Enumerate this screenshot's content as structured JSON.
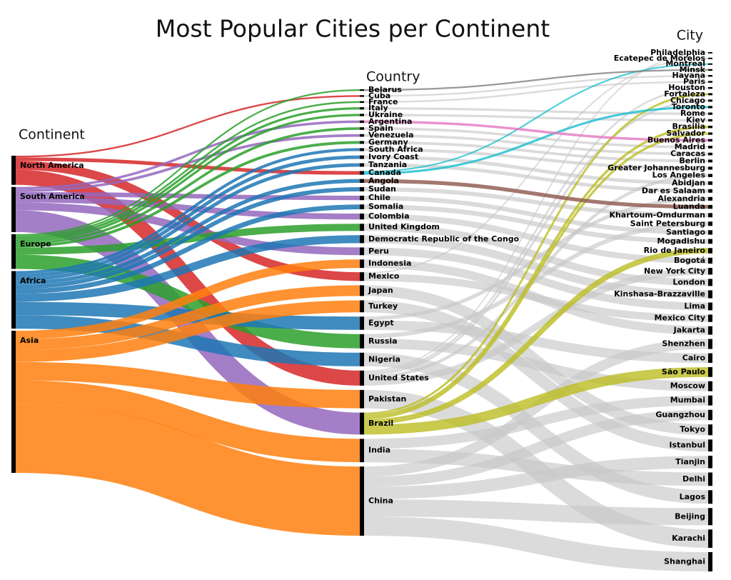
{
  "chart_data": {
    "type": "sankey",
    "title": "Most Popular Cities per Continent",
    "link_color": "#c7c7c7",
    "columns": [
      {
        "title": "Continent",
        "nodes": [
          {
            "name": "North America",
            "color": "#d62728"
          },
          {
            "name": "South America",
            "color": "#9467bd"
          },
          {
            "name": "Europe",
            "color": "#2ca02c"
          },
          {
            "name": "Africa",
            "color": "#1f77b4"
          },
          {
            "name": "Asia",
            "color": "#ff7f0e"
          }
        ]
      },
      {
        "title": "Country",
        "nodes": [
          {
            "name": "Belarus",
            "color": "#7f7f7f"
          },
          {
            "name": "Cuba"
          },
          {
            "name": "France"
          },
          {
            "name": "Italy"
          },
          {
            "name": "Ukraine"
          },
          {
            "name": "Argentina",
            "color": "#e377c2"
          },
          {
            "name": "Spain"
          },
          {
            "name": "Venezuela"
          },
          {
            "name": "Germany"
          },
          {
            "name": "South Africa"
          },
          {
            "name": "Ivory Coast"
          },
          {
            "name": "Tanzania"
          },
          {
            "name": "Canada",
            "color": "#17becf"
          },
          {
            "name": "Angola",
            "color": "#8c564b"
          },
          {
            "name": "Sudan"
          },
          {
            "name": "Chile"
          },
          {
            "name": "Somalia"
          },
          {
            "name": "Colombia"
          },
          {
            "name": "United Kingdom"
          },
          {
            "name": "Democratic Republic of the Congo"
          },
          {
            "name": "Peru"
          },
          {
            "name": "Indonesia"
          },
          {
            "name": "Mexico"
          },
          {
            "name": "Japan"
          },
          {
            "name": "Turkey"
          },
          {
            "name": "Egypt"
          },
          {
            "name": "Russia"
          },
          {
            "name": "Nigeria"
          },
          {
            "name": "United States"
          },
          {
            "name": "Pakistan"
          },
          {
            "name": "Brazil",
            "color": "#bcbd22"
          },
          {
            "name": "India"
          },
          {
            "name": "China"
          }
        ]
      },
      {
        "title": "City",
        "nodes": [
          {
            "name": "Philadelphia"
          },
          {
            "name": "Ecatepec de Morelos"
          },
          {
            "name": "Montreal"
          },
          {
            "name": "Minsk"
          },
          {
            "name": "Havana"
          },
          {
            "name": "Paris"
          },
          {
            "name": "Houston"
          },
          {
            "name": "Fortaleza"
          },
          {
            "name": "Chicago"
          },
          {
            "name": "Toronto"
          },
          {
            "name": "Rome"
          },
          {
            "name": "Kiev"
          },
          {
            "name": "Brasilia"
          },
          {
            "name": "Salvador"
          },
          {
            "name": "Buenos Aires"
          },
          {
            "name": "Madrid"
          },
          {
            "name": "Caracas"
          },
          {
            "name": "Berlin"
          },
          {
            "name": "Greater Johannesburg"
          },
          {
            "name": "Los Angeles"
          },
          {
            "name": "Abidjan"
          },
          {
            "name": "Dar es Salaam"
          },
          {
            "name": "Alexandria"
          },
          {
            "name": "Luanda"
          },
          {
            "name": "Khartoum-Omdurman"
          },
          {
            "name": "Saint Petersburg"
          },
          {
            "name": "Santiago"
          },
          {
            "name": "Mogadishu"
          },
          {
            "name": "Rio de Janeiro"
          },
          {
            "name": "Bogotá"
          },
          {
            "name": "New York City"
          },
          {
            "name": "London"
          },
          {
            "name": "Kinshasa-Brazzaville"
          },
          {
            "name": "Lima"
          },
          {
            "name": "Mexico City"
          },
          {
            "name": "Jakarta"
          },
          {
            "name": "Shenzhen"
          },
          {
            "name": "Cairo"
          },
          {
            "name": "São Paulo"
          },
          {
            "name": "Moscow"
          },
          {
            "name": "Mumbai"
          },
          {
            "name": "Guangzhou"
          },
          {
            "name": "Tokyo"
          },
          {
            "name": "Istanbul"
          },
          {
            "name": "Tianjin"
          },
          {
            "name": "Delhi"
          },
          {
            "name": "Lagos"
          },
          {
            "name": "Beijing"
          },
          {
            "name": "Karachi"
          },
          {
            "name": "Shanghai"
          }
        ]
      }
    ],
    "links": [
      {
        "source": "North America",
        "target": "Cuba",
        "value": 2.1
      },
      {
        "source": "North America",
        "target": "Canada",
        "value": 4.6
      },
      {
        "source": "North America",
        "target": "Mexico",
        "value": 10.9
      },
      {
        "source": "North America",
        "target": "United States",
        "value": 18.9
      },
      {
        "source": "South America",
        "target": "Argentina",
        "value": 3.1
      },
      {
        "source": "South America",
        "target": "Venezuela",
        "value": 3.3
      },
      {
        "source": "South America",
        "target": "Chile",
        "value": 5.6
      },
      {
        "source": "South America",
        "target": "Colombia",
        "value": 7.4
      },
      {
        "source": "South America",
        "target": "Peru",
        "value": 9.7
      },
      {
        "source": "South America",
        "target": "Brazil",
        "value": 27.5
      },
      {
        "source": "Europe",
        "target": "Belarus",
        "value": 2.0
      },
      {
        "source": "Europe",
        "target": "France",
        "value": 2.2
      },
      {
        "source": "Europe",
        "target": "Italy",
        "value": 2.9
      },
      {
        "source": "Europe",
        "target": "Ukraine",
        "value": 2.9
      },
      {
        "source": "Europe",
        "target": "Spain",
        "value": 3.2
      },
      {
        "source": "Europe",
        "target": "Germany",
        "value": 3.5
      },
      {
        "source": "Europe",
        "target": "United Kingdom",
        "value": 8.9
      },
      {
        "source": "Europe",
        "target": "Russia",
        "value": 17.9
      },
      {
        "source": "Africa",
        "target": "South Africa",
        "value": 3.7
      },
      {
        "source": "Africa",
        "target": "Ivory Coast",
        "value": 4.4
      },
      {
        "source": "Africa",
        "target": "Tanzania",
        "value": 4.4
      },
      {
        "source": "Africa",
        "target": "Angola",
        "value": 4.8
      },
      {
        "source": "Africa",
        "target": "Sudan",
        "value": 5.3
      },
      {
        "source": "Africa",
        "target": "Somalia",
        "value": 6.0
      },
      {
        "source": "Africa",
        "target": "Democratic Republic of the Congo",
        "value": 10
      },
      {
        "source": "Africa",
        "target": "Egypt",
        "value": 16.6
      },
      {
        "source": "Africa",
        "target": "Nigeria",
        "value": 17
      },
      {
        "source": "Asia",
        "target": "Indonesia",
        "value": 10.6
      },
      {
        "source": "Asia",
        "target": "Japan",
        "value": 13.5
      },
      {
        "source": "Asia",
        "target": "Turkey",
        "value": 15
      },
      {
        "source": "Asia",
        "target": "Pakistan",
        "value": 23
      },
      {
        "source": "Asia",
        "target": "India",
        "value": 29.3
      },
      {
        "source": "Asia",
        "target": "China",
        "value": 86.8
      },
      {
        "source": "United States",
        "target": "Philadelphia",
        "value": 1.6
      },
      {
        "source": "Mexico",
        "target": "Ecatepec de Morelos",
        "value": 1.7
      },
      {
        "source": "Canada",
        "target": "Montreal",
        "value": 1.8
      },
      {
        "source": "Belarus",
        "target": "Minsk",
        "value": 2.0
      },
      {
        "source": "Cuba",
        "target": "Havana",
        "value": 2.1
      },
      {
        "source": "France",
        "target": "Paris",
        "value": 2.2
      },
      {
        "source": "United States",
        "target": "Houston",
        "value": 2.3
      },
      {
        "source": "Brazil",
        "target": "Fortaleza",
        "value": 2.6
      },
      {
        "source": "United States",
        "target": "Chicago",
        "value": 2.7
      },
      {
        "source": "Canada",
        "target": "Toronto",
        "value": 2.8
      },
      {
        "source": "Italy",
        "target": "Rome",
        "value": 2.9
      },
      {
        "source": "Ukraine",
        "target": "Kiev",
        "value": 2.9
      },
      {
        "source": "Brazil",
        "target": "Brasilia",
        "value": 3.0
      },
      {
        "source": "Brazil",
        "target": "Salvador",
        "value": 2.9
      },
      {
        "source": "Argentina",
        "target": "Buenos Aires",
        "value": 3.1
      },
      {
        "source": "Spain",
        "target": "Madrid",
        "value": 3.2
      },
      {
        "source": "Venezuela",
        "target": "Caracas",
        "value": 3.3
      },
      {
        "source": "Germany",
        "target": "Berlin",
        "value": 3.5
      },
      {
        "source": "South Africa",
        "target": "Greater Johannesburg",
        "value": 3.7
      },
      {
        "source": "United States",
        "target": "Los Angeles",
        "value": 3.9
      },
      {
        "source": "Ivory Coast",
        "target": "Abidjan",
        "value": 4.4
      },
      {
        "source": "Tanzania",
        "target": "Dar es Salaam",
        "value": 4.4
      },
      {
        "source": "Egypt",
        "target": "Alexandria",
        "value": 4.6
      },
      {
        "source": "Angola",
        "target": "Luanda",
        "value": 4.8
      },
      {
        "source": "Sudan",
        "target": "Khartoum-Omdurman",
        "value": 5.3
      },
      {
        "source": "Russia",
        "target": "Saint Petersburg",
        "value": 5.4
      },
      {
        "source": "Chile",
        "target": "Santiago",
        "value": 5.6
      },
      {
        "source": "Somalia",
        "target": "Mogadishu",
        "value": 6.0
      },
      {
        "source": "Brazil",
        "target": "Rio de Janeiro",
        "value": 6.7
      },
      {
        "source": "Colombia",
        "target": "Bogotá",
        "value": 7.4
      },
      {
        "source": "United States",
        "target": "New York City",
        "value": 8.4
      },
      {
        "source": "United Kingdom",
        "target": "London",
        "value": 8.9
      },
      {
        "source": "Democratic Republic of the Congo",
        "target": "Kinshasa-Brazzaville",
        "value": 10
      },
      {
        "source": "Peru",
        "target": "Lima",
        "value": 9.7
      },
      {
        "source": "Mexico",
        "target": "Mexico City",
        "value": 9.2
      },
      {
        "source": "Indonesia",
        "target": "Jakarta",
        "value": 10.6
      },
      {
        "source": "China",
        "target": "Shenzhen",
        "value": 12.5
      },
      {
        "source": "Egypt",
        "target": "Cairo",
        "value": 12
      },
      {
        "source": "Brazil",
        "target": "São Paulo",
        "value": 12.3
      },
      {
        "source": "Russia",
        "target": "Moscow",
        "value": 12.5
      },
      {
        "source": "India",
        "target": "Mumbai",
        "value": 12.5
      },
      {
        "source": "China",
        "target": "Guangzhou",
        "value": 13
      },
      {
        "source": "Japan",
        "target": "Tokyo",
        "value": 13.5
      },
      {
        "source": "Turkey",
        "target": "Istanbul",
        "value": 15
      },
      {
        "source": "China",
        "target": "Tianjin",
        "value": 15.6
      },
      {
        "source": "India",
        "target": "Delhi",
        "value": 16.8
      },
      {
        "source": "Nigeria",
        "target": "Lagos",
        "value": 17
      },
      {
        "source": "China",
        "target": "Beijing",
        "value": 21.5
      },
      {
        "source": "Pakistan",
        "target": "Karachi",
        "value": 23
      },
      {
        "source": "China",
        "target": "Shanghai",
        "value": 24.2
      }
    ]
  }
}
